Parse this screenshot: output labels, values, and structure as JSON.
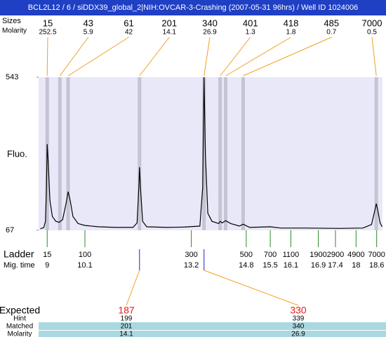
{
  "title": "BCL2L12 / 6 / siDDX39_global_2|NIH:OVCAR-3-Crashing (2007-05-31 96hrs) / Well ID 1024006",
  "chart_data": {
    "type": "electropherogram",
    "y_label": "Fluo.",
    "ylim": [
      67,
      543
    ],
    "yticks": [
      67,
      543
    ],
    "xlim": [
      8.75,
      18.77
    ],
    "trace": {
      "color": "#000000",
      "x": [
        8.8,
        8.9,
        8.95,
        8.98,
        9.0,
        9.03,
        9.08,
        9.15,
        9.25,
        9.35,
        9.45,
        9.55,
        9.61,
        9.67,
        9.75,
        9.9,
        10.1,
        10.5,
        11.0,
        11.5,
        11.62,
        11.67,
        11.69,
        11.72,
        11.78,
        11.9,
        12.5,
        13.0,
        13.45,
        13.53,
        13.57,
        13.61,
        13.68,
        13.8,
        14.0,
        14.04,
        14.1,
        14.2,
        14.35,
        14.6,
        14.71,
        14.9,
        15.5,
        15.8,
        16.5,
        17.5,
        18.2,
        18.45,
        18.55,
        18.59,
        18.63,
        18.7,
        18.76
      ],
      "y": [
        72,
        75,
        95,
        200,
        335,
        280,
        160,
        110,
        95,
        92,
        100,
        150,
        187,
        160,
        110,
        88,
        82,
        78,
        76,
        76,
        90,
        200,
        263,
        200,
        95,
        78,
        76,
        77,
        80,
        200,
        543,
        300,
        120,
        95,
        88,
        95,
        90,
        97,
        88,
        80,
        86,
        76,
        78,
        74,
        74,
        73,
        74,
        85,
        130,
        150,
        130,
        90,
        78
      ]
    },
    "peaks": {
      "sizes_label": "Sizes",
      "molarity_label": "Molarity",
      "mig_times": [
        9.0,
        9.37,
        9.61,
        11.69,
        13.57,
        14.04,
        14.2,
        14.71,
        18.59
      ],
      "sizes": [
        15,
        43,
        61,
        201,
        340,
        401,
        418,
        485,
        7000
      ],
      "molarity": [
        252.5,
        5.9,
        42,
        14.1,
        26.9,
        1.3,
        1.8,
        0.7,
        0.5
      ]
    },
    "ladder": {
      "label": "Ladder",
      "mig_label": "Mig. time",
      "sizes": [
        15,
        100,
        300,
        500,
        700,
        1100,
        1900,
        2900,
        4900,
        7000
      ],
      "mig_times": [
        9,
        10.1,
        13.2,
        14.8,
        15.5,
        16.1,
        16.9,
        17.4,
        18,
        18.6
      ]
    },
    "expected": {
      "row_labels": [
        "Expected",
        "Hint",
        "Matched",
        "Molarity"
      ],
      "expected": [
        187,
        330
      ],
      "hint": [
        199,
        339
      ],
      "matched": [
        201,
        340
      ],
      "molarity": [
        14.1,
        26.9
      ]
    }
  }
}
